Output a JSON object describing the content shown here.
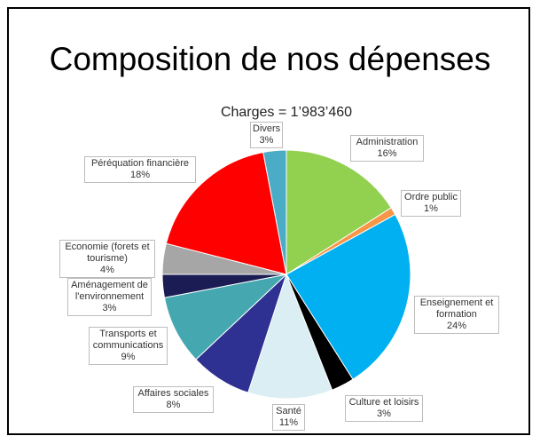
{
  "chart_data": {
    "type": "pie",
    "title": "Composition de nos dépenses",
    "subtitle": "Charges = 1’983’460",
    "categories": [
      "Administration",
      "Ordre public",
      "Enseignement et formation",
      "Culture et loisirs",
      "Santé",
      "Affaires sociales",
      "Transports et communications",
      "Aménagement de l'environnement",
      "Economie (forets et tourisme)",
      "Péréquation financière",
      "Divers"
    ],
    "values": [
      16,
      1,
      24,
      3,
      11,
      8,
      9,
      3,
      4,
      18,
      3
    ],
    "value_labels": [
      "16%",
      "1%",
      "24%",
      "3%",
      "11%",
      "8%",
      "9%",
      "3%",
      "4%",
      "18%",
      "3%"
    ],
    "colors": [
      "#92d050",
      "#f79646",
      "#00b0f0",
      "#000000",
      "#dbeef3",
      "#2e3192",
      "#45a8b0",
      "#1c1c54",
      "#a6a6a6",
      "#ff0000",
      "#4bacc6"
    ]
  }
}
